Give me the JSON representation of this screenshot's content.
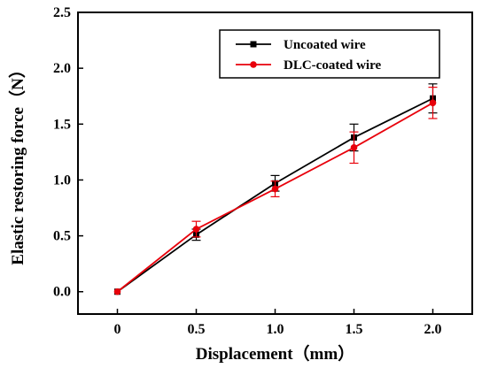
{
  "chart_data": {
    "type": "line",
    "xlabel": "Displacement（mm）",
    "ylabel": "Elastic restoring force（N）",
    "x": [
      0,
      0.5,
      1.0,
      1.5,
      2.0
    ],
    "xlim": [
      -0.25,
      2.25
    ],
    "ylim": [
      -0.2,
      2.5
    ],
    "x_ticks": [
      "0",
      "0.5",
      "1.0",
      "1.5",
      "2.0"
    ],
    "y_ticks": [
      "0.0",
      "0.5",
      "1.0",
      "1.5",
      "2.0",
      "2.5"
    ],
    "grid": false,
    "legend_position": "top-right",
    "series": [
      {
        "name": "Uncoated wire",
        "color": "#000000",
        "marker": "square",
        "values": [
          0.0,
          0.51,
          0.97,
          1.38,
          1.73
        ],
        "errors": [
          0.0,
          0.05,
          0.07,
          0.12,
          0.13
        ]
      },
      {
        "name": "DLC-coated wire",
        "color": "#e8000b",
        "marker": "circle",
        "values": [
          0.0,
          0.56,
          0.92,
          1.29,
          1.69
        ],
        "errors": [
          0.0,
          0.07,
          0.07,
          0.14,
          0.14
        ]
      }
    ]
  }
}
